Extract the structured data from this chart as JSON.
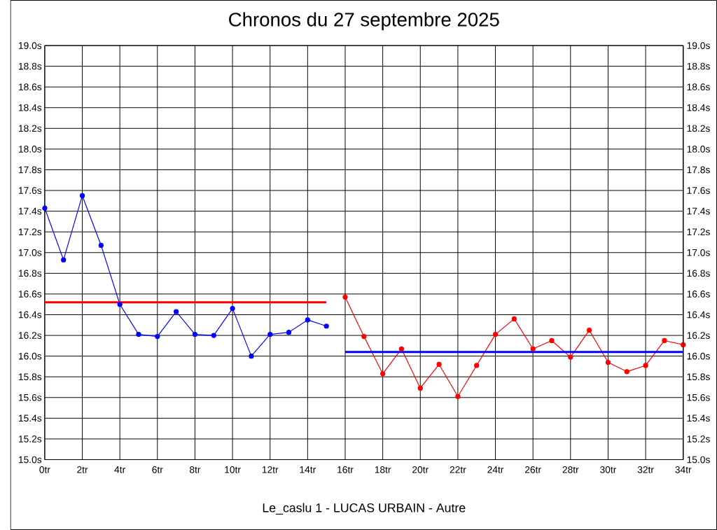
{
  "chart_data": {
    "type": "line",
    "title": "Chronos du 27 septembre 2025",
    "xlabel": "Le_caslu 1 - LUCAS URBAIN - Autre",
    "xlim": [
      0,
      34
    ],
    "xticks": [
      {
        "value": 0,
        "label": "0tr"
      },
      {
        "value": 2,
        "label": "2tr"
      },
      {
        "value": 4,
        "label": "4tr"
      },
      {
        "value": 6,
        "label": "6tr"
      },
      {
        "value": 8,
        "label": "8tr"
      },
      {
        "value": 10,
        "label": "10tr"
      },
      {
        "value": 12,
        "label": "12tr"
      },
      {
        "value": 14,
        "label": "14tr"
      },
      {
        "value": 16,
        "label": "16tr"
      },
      {
        "value": 18,
        "label": "18tr"
      },
      {
        "value": 20,
        "label": "20tr"
      },
      {
        "value": 22,
        "label": "22tr"
      },
      {
        "value": 24,
        "label": "24tr"
      },
      {
        "value": 26,
        "label": "26tr"
      },
      {
        "value": 28,
        "label": "28tr"
      },
      {
        "value": 30,
        "label": "30tr"
      },
      {
        "value": 32,
        "label": "32tr"
      },
      {
        "value": 34,
        "label": "34tr"
      }
    ],
    "ylim": [
      15,
      19
    ],
    "yticks": [
      {
        "value": 15.0,
        "label": "15.0s"
      },
      {
        "value": 15.2,
        "label": "15.2s"
      },
      {
        "value": 15.4,
        "label": "15.4s"
      },
      {
        "value": 15.6,
        "label": "15.6s"
      },
      {
        "value": 15.8,
        "label": "15.8s"
      },
      {
        "value": 16.0,
        "label": "16.0s"
      },
      {
        "value": 16.2,
        "label": "16.2s"
      },
      {
        "value": 16.4,
        "label": "16.4s"
      },
      {
        "value": 16.6,
        "label": "16.6s"
      },
      {
        "value": 16.8,
        "label": "16.8s"
      },
      {
        "value": 17.0,
        "label": "17.0s"
      },
      {
        "value": 17.2,
        "label": "17.2s"
      },
      {
        "value": 17.4,
        "label": "17.4s"
      },
      {
        "value": 17.6,
        "label": "17.6s"
      },
      {
        "value": 17.8,
        "label": "17.8s"
      },
      {
        "value": 18.0,
        "label": "18.0s"
      },
      {
        "value": 18.2,
        "label": "18.2s"
      },
      {
        "value": 18.4,
        "label": "18.4s"
      },
      {
        "value": 18.6,
        "label": "18.6s"
      },
      {
        "value": 18.8,
        "label": "18.8s"
      },
      {
        "value": 19.0,
        "label": "19.0s"
      }
    ],
    "y2lim": [
      15,
      19
    ],
    "y2ticks": [
      {
        "value": 15.0,
        "label": "15.0s"
      },
      {
        "value": 15.2,
        "label": "15.2s"
      },
      {
        "value": 15.4,
        "label": "15.4s"
      },
      {
        "value": 15.6,
        "label": "15.6s"
      },
      {
        "value": 15.8,
        "label": "15.8s"
      },
      {
        "value": 16.0,
        "label": "16.0s"
      },
      {
        "value": 16.2,
        "label": "16.2s"
      },
      {
        "value": 16.4,
        "label": "16.4s"
      },
      {
        "value": 16.6,
        "label": "16.6s"
      },
      {
        "value": 16.8,
        "label": "16.8s"
      },
      {
        "value": 17.0,
        "label": "17.0s"
      },
      {
        "value": 17.2,
        "label": "17.2s"
      },
      {
        "value": 17.4,
        "label": "17.4s"
      },
      {
        "value": 17.6,
        "label": "17.6s"
      },
      {
        "value": 17.8,
        "label": "17.8s"
      },
      {
        "value": 18.0,
        "label": "18.0s"
      },
      {
        "value": 18.2,
        "label": "18.2s"
      },
      {
        "value": 18.4,
        "label": "18.4s"
      },
      {
        "value": 18.6,
        "label": "18.6s"
      },
      {
        "value": 18.8,
        "label": "18.8s"
      },
      {
        "value": 19.0,
        "label": "19.0s"
      }
    ],
    "grid": true,
    "marker": "circle",
    "series": [
      {
        "color": "#0000ff",
        "x": [
          0,
          1,
          2,
          3,
          4,
          5,
          6,
          7,
          8,
          9,
          10,
          11,
          12,
          13,
          14,
          15
        ],
        "values": [
          17.43,
          16.93,
          17.55,
          17.07,
          16.5,
          16.21,
          16.19,
          16.43,
          16.21,
          16.2,
          16.46,
          16.0,
          16.21,
          16.23,
          16.35,
          16.29
        ]
      },
      {
        "color": "#ff0000",
        "x": [
          16,
          17,
          18,
          19,
          20,
          21,
          22,
          23,
          24,
          25,
          26,
          27,
          28,
          29,
          30,
          31,
          32,
          33,
          34
        ],
        "values": [
          16.57,
          16.19,
          15.83,
          16.07,
          15.69,
          15.92,
          15.61,
          15.91,
          16.21,
          16.36,
          16.07,
          16.15,
          15.99,
          16.25,
          15.94,
          15.85,
          15.91,
          16.15,
          16.11
        ]
      },
      {
        "color": "#ff0000",
        "marker": "none",
        "x": [
          0,
          15
        ],
        "values": [
          16.52,
          16.52
        ]
      },
      {
        "color": "#0000ff",
        "marker": "none",
        "x": [
          16,
          34
        ],
        "values": [
          16.04,
          16.04
        ]
      }
    ]
  }
}
